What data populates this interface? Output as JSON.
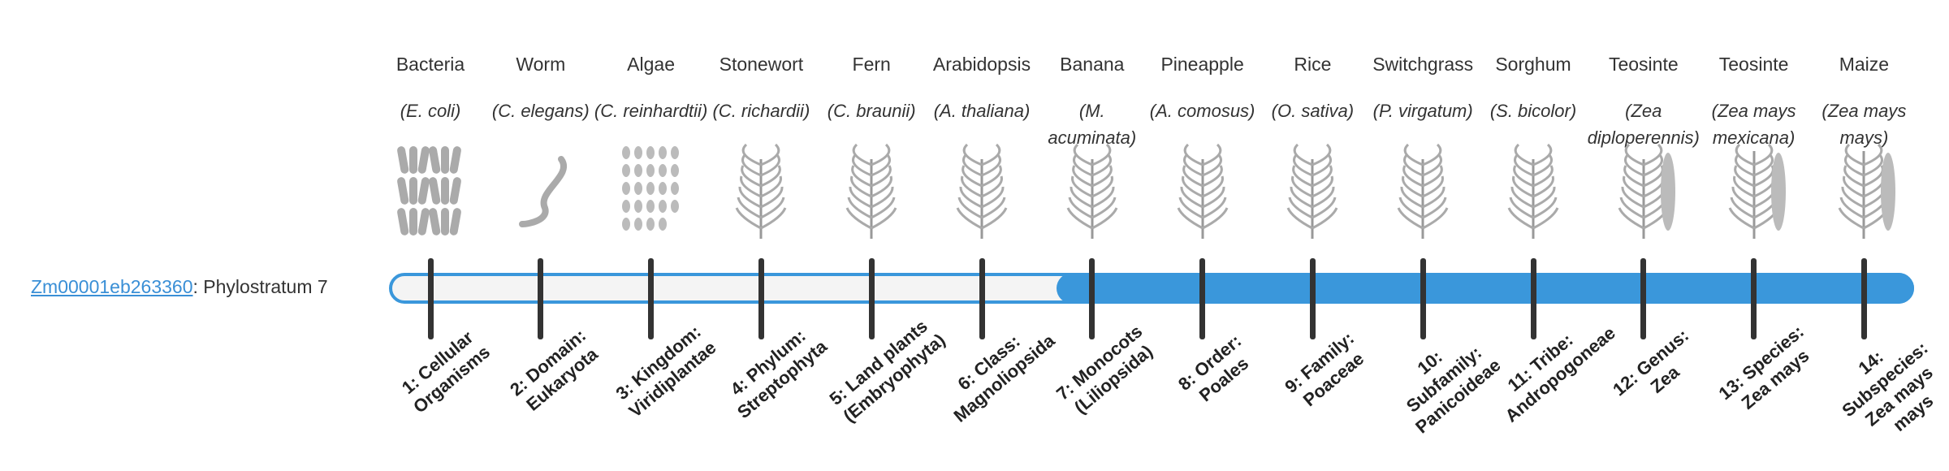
{
  "gene": {
    "id": "Zm00001eb263360",
    "label": ": Phylostratum 7",
    "stratum": 7
  },
  "organisms": [
    {
      "name": "Bacteria",
      "species": "(E. coli)",
      "stratum": "1: Cellular Organisms"
    },
    {
      "name": "Worm",
      "species": "(C. elegans)",
      "stratum": "2: Domain: Eukaryota"
    },
    {
      "name": "Algae",
      "species": "(C. reinhardtii)",
      "stratum": "3: Kingdom: Viridiplantae"
    },
    {
      "name": "Stonewort",
      "species": "(C. richardii)",
      "stratum": "4: Phylum: Streptophyta"
    },
    {
      "name": "Fern",
      "species": "(C. braunii)",
      "stratum": "5: Land plants (Embryophyta)"
    },
    {
      "name": "Arabidopsis",
      "species": "(A. thaliana)",
      "stratum": "6: Class: Magnoliopsida"
    },
    {
      "name": "Banana",
      "species": "(M. acuminata)",
      "stratum": "7: Monocots (Liliopsida)"
    },
    {
      "name": "Pineapple",
      "species": "(A. comosus)",
      "stratum": "8: Order: Poales"
    },
    {
      "name": "Rice",
      "species": "(O. sativa)",
      "stratum": "9: Family: Poaceae"
    },
    {
      "name": "Switchgrass",
      "species": "(P. virgatum)",
      "stratum": "10: Subfamily: Panicoideae"
    },
    {
      "name": "Sorghum",
      "species": "(S. bicolor)",
      "stratum": "11: Tribe: Andropogoneae"
    },
    {
      "name": "Teosinte",
      "species": "(Zea diploperennis)",
      "stratum": "12: Genus: Zea"
    },
    {
      "name": "Teosinte",
      "species": "(Zea mays mexicana)",
      "stratum": "13: Species: Zea mays"
    },
    {
      "name": "Maize",
      "species": "(Zea mays mays)",
      "stratum": "14: Subspecies: Zea mays mays"
    }
  ]
}
